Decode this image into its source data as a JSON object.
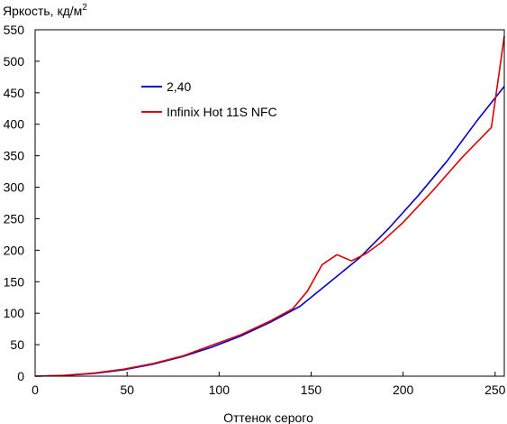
{
  "chart_data": {
    "type": "line",
    "ylabel_main": "Яркость, кд/м",
    "ylabel_sup": "2",
    "xlabel": "Оттенок серого",
    "xlim": [
      0,
      255
    ],
    "ylim": [
      0,
      550
    ],
    "xticks": [
      0,
      50,
      100,
      150,
      200,
      250
    ],
    "yticks": [
      0,
      50,
      100,
      150,
      200,
      250,
      300,
      350,
      400,
      450,
      500,
      550
    ],
    "grid": false,
    "legend_position": "upper-left",
    "series": [
      {
        "name": "2,40",
        "color": "#0000cc",
        "x": [
          0,
          16,
          32,
          48,
          64,
          80,
          96,
          112,
          128,
          144,
          160,
          176,
          192,
          208,
          224,
          240,
          255
        ],
        "y": [
          0,
          1.2,
          4.5,
          10,
          19,
          31,
          46,
          64,
          86,
          111,
          149,
          187,
          234,
          286,
          342,
          405,
          460
        ]
      },
      {
        "name": "Infinix Hot 11S NFC",
        "color": "#dd0000",
        "x": [
          0,
          16,
          32,
          48,
          64,
          80,
          96,
          112,
          128,
          140,
          148,
          156,
          164,
          172,
          180,
          188,
          200,
          216,
          232,
          248,
          255
        ],
        "y": [
          0,
          1.5,
          5,
          11,
          20,
          32,
          49,
          66,
          88,
          107,
          135,
          177,
          193,
          183,
          195,
          212,
          244,
          294,
          347,
          395,
          540
        ]
      }
    ]
  }
}
